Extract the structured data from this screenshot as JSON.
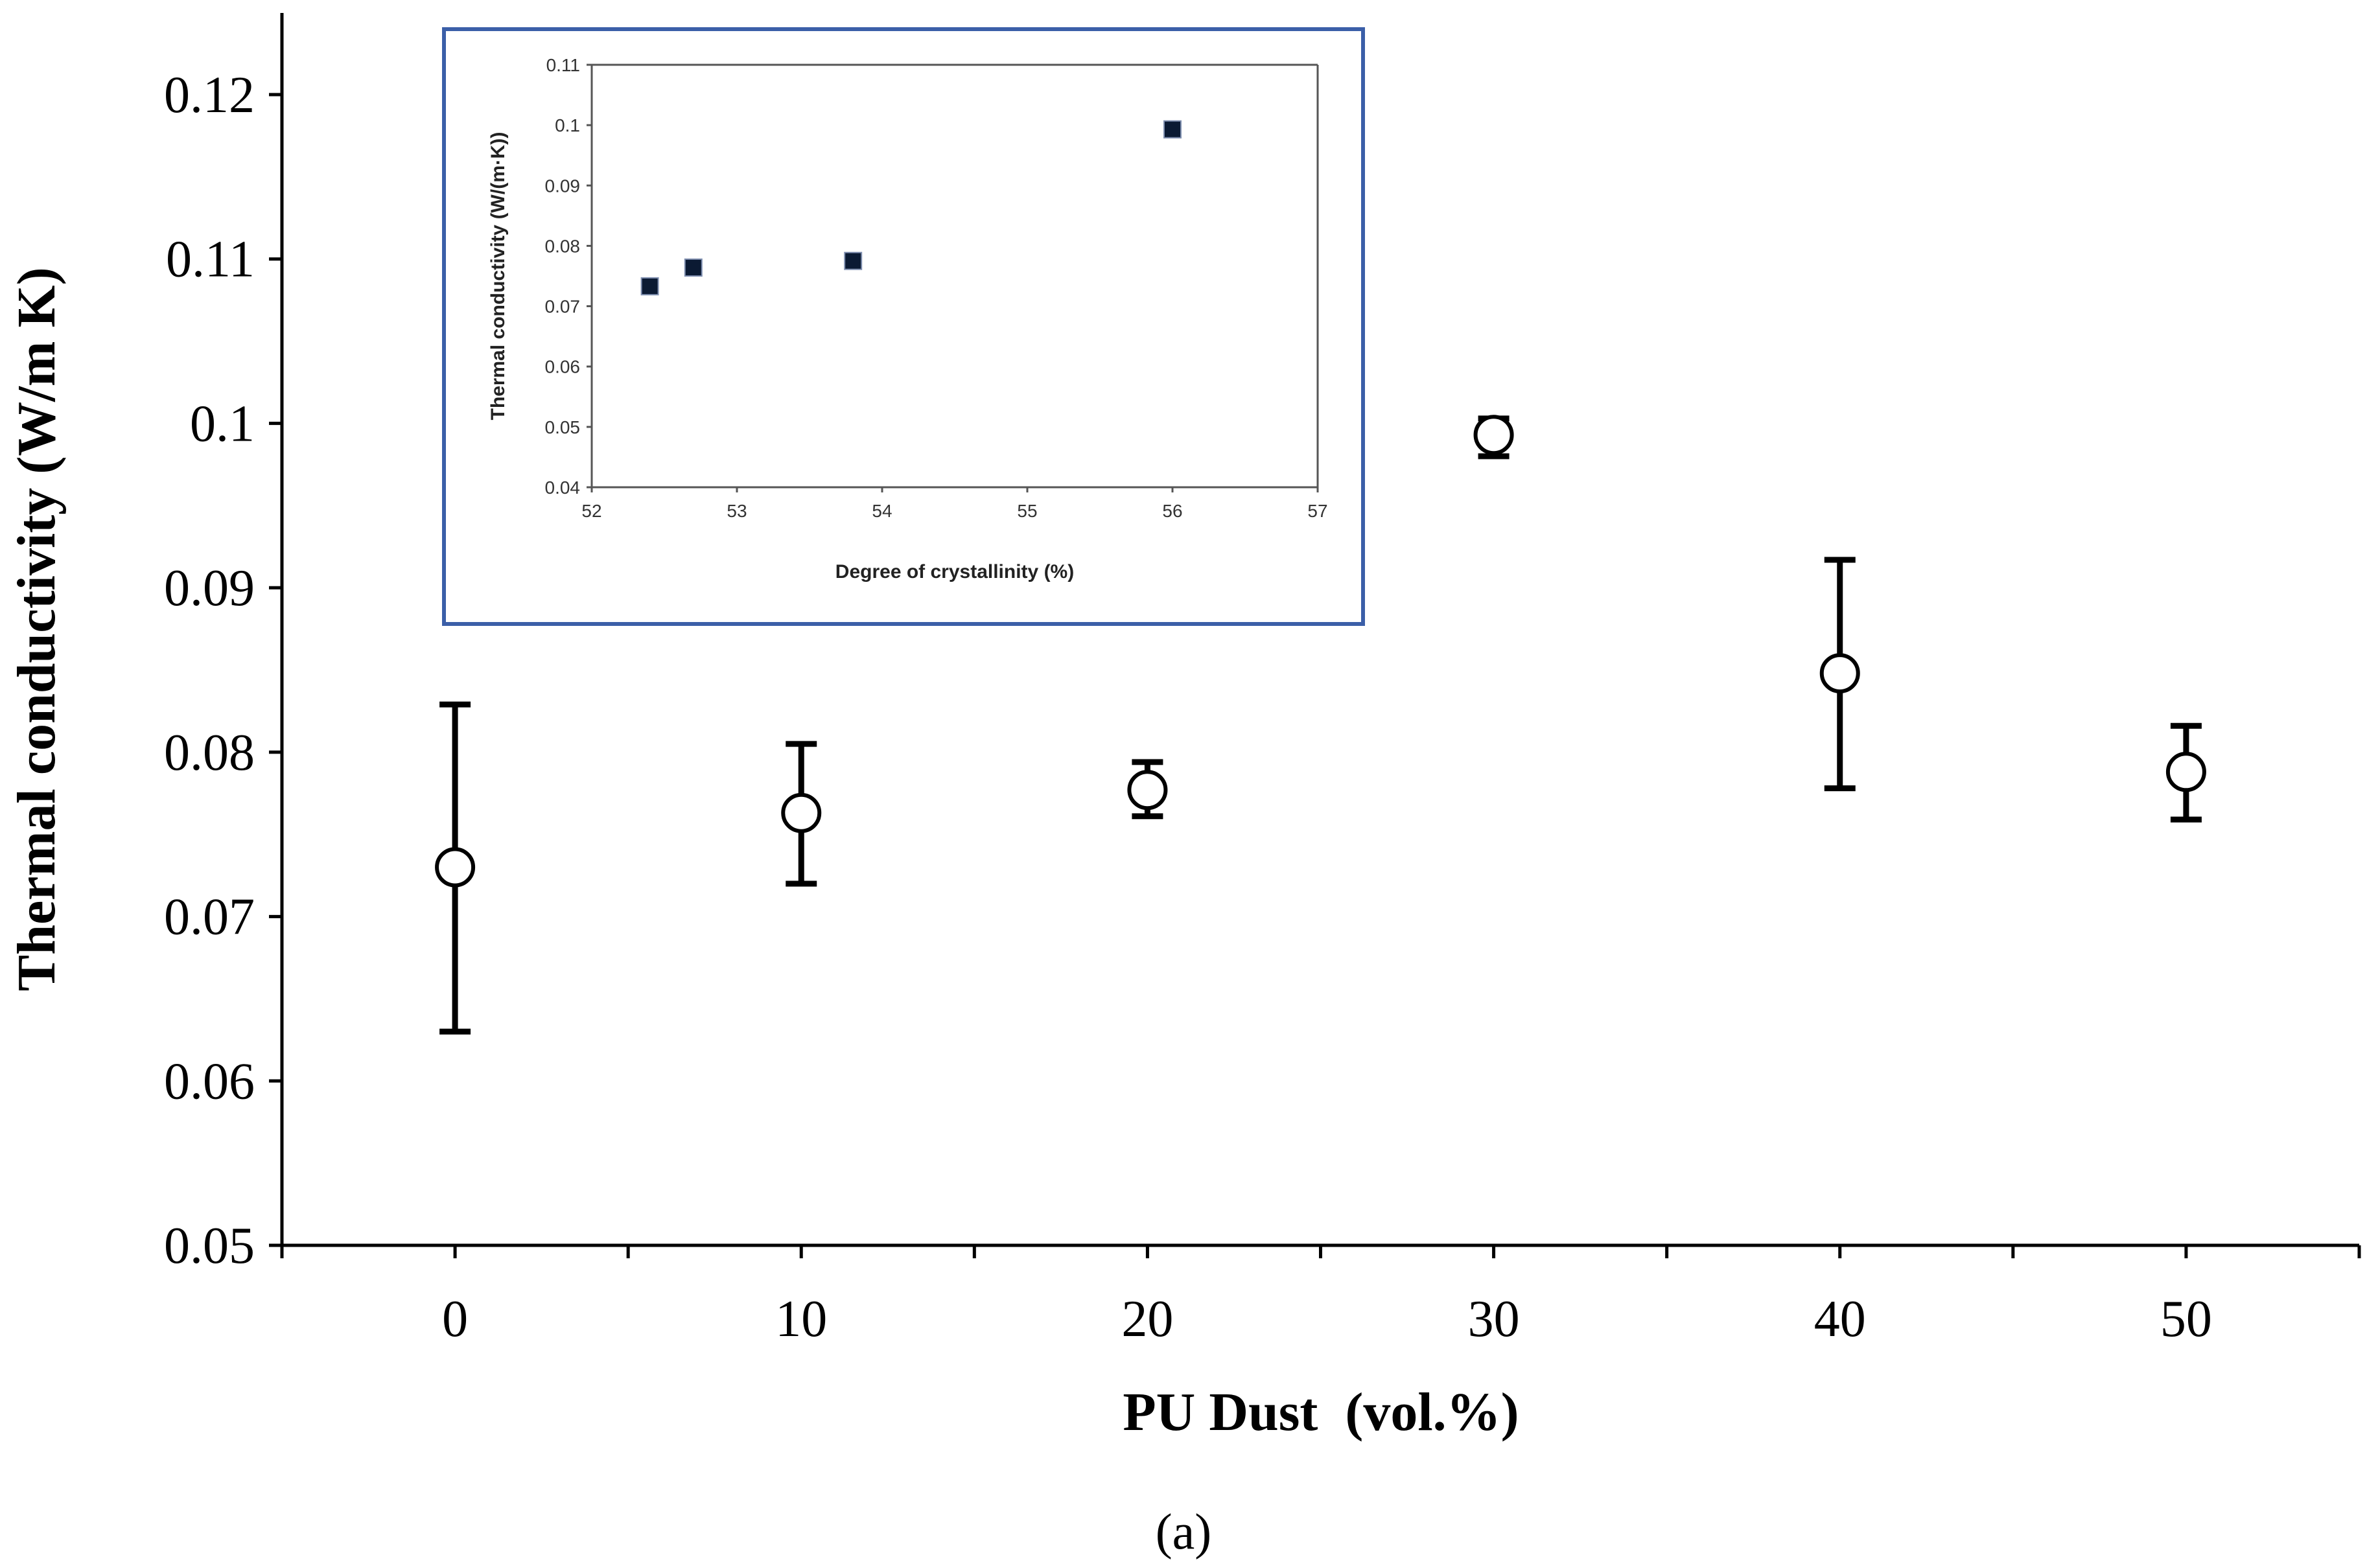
{
  "chart_data": [
    {
      "type": "scatter",
      "xlabel": "PU Dust  (vol.%)",
      "ylabel": "Thermal conductivity (W/m K)",
      "xlim": [
        -5,
        55
      ],
      "ylim": [
        0.05,
        0.12
      ],
      "x_ticks": [
        "0",
        "10",
        "20",
        "30",
        "40",
        "50"
      ],
      "y_ticks": [
        "0.05",
        "0.06",
        "0.07",
        "0.08",
        "0.09",
        "0.1",
        "0.11",
        "0.12"
      ],
      "grid": false,
      "marker": "open-circle",
      "series": [
        {
          "x": [
            0,
            10,
            20,
            30,
            40,
            50
          ],
          "y": [
            0.073,
            0.0763,
            0.0777,
            0.0993,
            0.0848,
            0.0788
          ],
          "error_low": [
            0.063,
            0.072,
            0.0761,
            0.098,
            0.0778,
            0.0759
          ],
          "error_high": [
            0.0829,
            0.0805,
            0.0794,
            0.1003,
            0.0917,
            0.0816
          ]
        }
      ]
    },
    {
      "type": "scatter",
      "xlabel": "Degree of crystallinity (%)",
      "ylabel": "Thermal conductivity (W/(m·K))",
      "xlim": [
        52,
        57
      ],
      "ylim": [
        0.04,
        0.11
      ],
      "x_ticks": [
        "52",
        "53",
        "54",
        "55",
        "56",
        "57"
      ],
      "y_ticks": [
        "0.04",
        "0.05",
        "0.06",
        "0.07",
        "0.08",
        "0.09",
        "0.1",
        "0.11"
      ],
      "grid": false,
      "marker": "filled-square",
      "series": [
        {
          "x": [
            52.4,
            52.7,
            53.8,
            56.0
          ],
          "y": [
            0.0733,
            0.0764,
            0.0775,
            0.0993
          ]
        }
      ]
    }
  ],
  "caption": "(a)"
}
